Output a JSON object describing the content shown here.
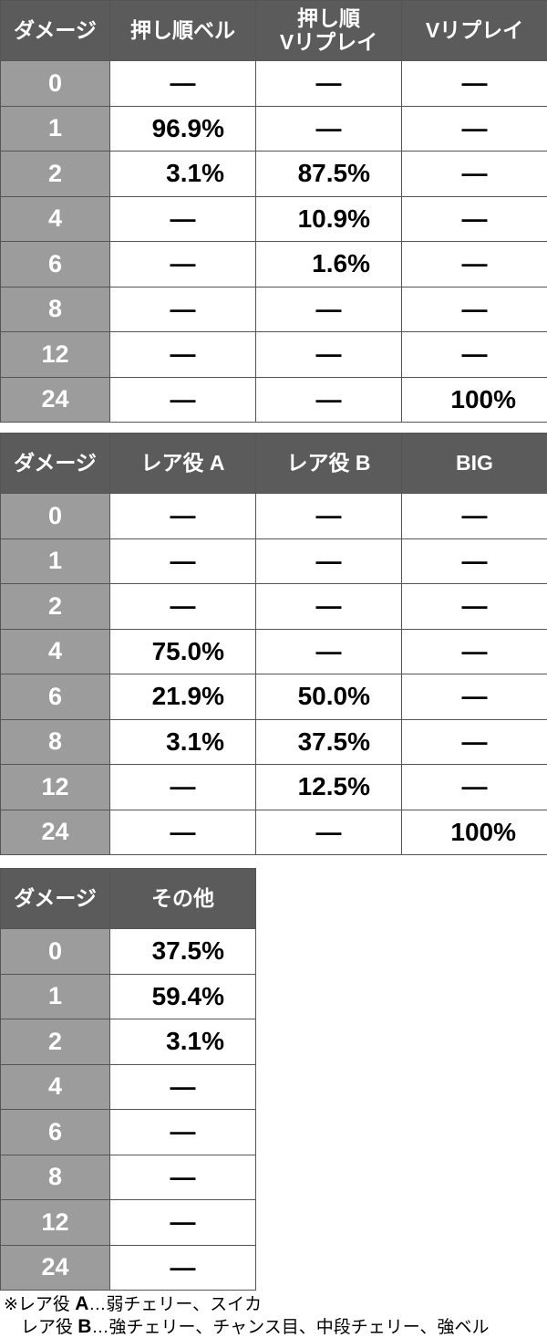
{
  "tables": [
    {
      "headers": [
        "ダメージ",
        "押し順ベル",
        "押し順\nVリプレイ",
        "Vリプレイ"
      ],
      "rows": [
        [
          "0",
          "—",
          "—",
          "—"
        ],
        [
          "1",
          "96.9%",
          "—",
          "—"
        ],
        [
          "2",
          "3.1%",
          "87.5%",
          "—"
        ],
        [
          "4",
          "—",
          "10.9%",
          "—"
        ],
        [
          "6",
          "—",
          "1.6%",
          "—"
        ],
        [
          "8",
          "—",
          "—",
          "—"
        ],
        [
          "12",
          "—",
          "—",
          "—"
        ],
        [
          "24",
          "—",
          "—",
          "100%"
        ]
      ]
    },
    {
      "headers": [
        "ダメージ",
        "レア役 A",
        "レア役 B",
        "BIG"
      ],
      "rows": [
        [
          "0",
          "—",
          "—",
          "—"
        ],
        [
          "1",
          "—",
          "—",
          "—"
        ],
        [
          "2",
          "—",
          "—",
          "—"
        ],
        [
          "4",
          "75.0%",
          "—",
          "—"
        ],
        [
          "6",
          "21.9%",
          "50.0%",
          "—"
        ],
        [
          "8",
          "3.1%",
          "37.5%",
          "—"
        ],
        [
          "12",
          "—",
          "12.5%",
          "—"
        ],
        [
          "24",
          "—",
          "—",
          "100%"
        ]
      ]
    },
    {
      "headers": [
        "ダメージ",
        "その他"
      ],
      "rows": [
        [
          "0",
          "37.5%"
        ],
        [
          "1",
          "59.4%"
        ],
        [
          "2",
          "3.1%"
        ],
        [
          "4",
          "—"
        ],
        [
          "6",
          "—"
        ],
        [
          "8",
          "—"
        ],
        [
          "12",
          "—"
        ],
        [
          "24",
          "—"
        ]
      ]
    }
  ],
  "notes": [
    {
      "prefix": "※レア役 ",
      "key": "A",
      "text": "…弱チェリー、スイカ"
    },
    {
      "prefix": "　レア役 ",
      "key": "B",
      "text": "…強チェリー、チャンス目、中段チェリー、強ベル"
    }
  ],
  "colors": {
    "header_bg": "#5b5b5b",
    "row_header_bg": "#9c9c9c"
  }
}
